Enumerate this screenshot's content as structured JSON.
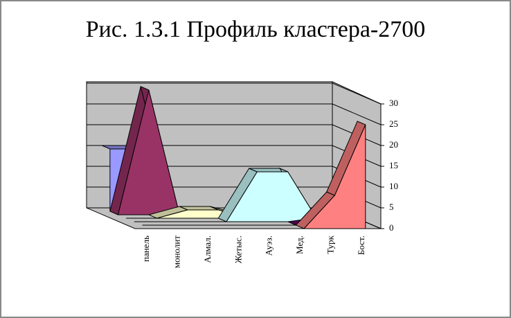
{
  "chart_data": {
    "type": "area3d",
    "title": "Рис. 1.3.1 Профиль кластера-2700",
    "categories": [
      "панель",
      "монолит",
      "Алмал.",
      "Жетыс.",
      "Ауэз.",
      "Мед.",
      "Турк",
      "Бост."
    ],
    "series": [
      {
        "color": "#9999ff",
        "values": [
          15,
          15,
          0,
          0,
          0,
          0,
          0,
          0
        ]
      },
      {
        "color": "#993366",
        "values": [
          0,
          30,
          0,
          0,
          0,
          0,
          0,
          0
        ]
      },
      {
        "color": "#ffffcc",
        "values": [
          0,
          0,
          2,
          2,
          0,
          0,
          0,
          0
        ]
      },
      {
        "color": "#ccffff",
        "values": [
          0,
          0,
          0,
          0,
          12,
          12,
          0,
          0
        ]
      },
      {
        "color": "#660066",
        "values": [
          0,
          0,
          0,
          0,
          0,
          0,
          1,
          0
        ]
      },
      {
        "color": "#ff8080",
        "values": [
          0,
          0,
          0,
          0,
          0,
          0,
          8,
          25
        ]
      }
    ],
    "ylim": [
      0,
      30
    ],
    "yticks": [
      0,
      5,
      10,
      15,
      20,
      25,
      30
    ],
    "grid": true
  }
}
